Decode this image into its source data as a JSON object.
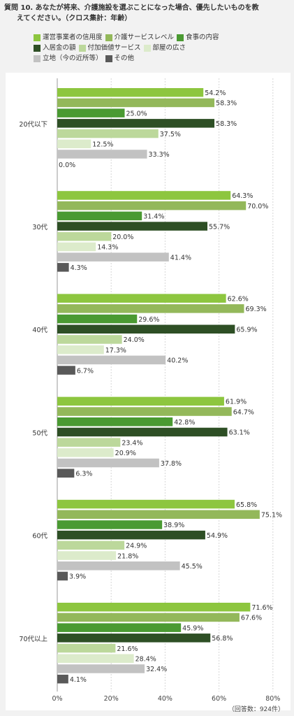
{
  "header": {
    "title_line1": "質問 10. あなたが将来、介護施設を選ぶことになった場合、優先したいものを教",
    "title_line2": "えてください。（クロス集計：年齢）"
  },
  "footnote": "（回答数：924件）",
  "chart_data": {
    "type": "bar",
    "orientation": "horizontal",
    "title": "質問 10. あなたが将来、介護施設を選ぶことになった場合、優先したいものを教えてください。（クロス集計：年齢）",
    "categories": [
      "20代以下",
      "30代",
      "40代",
      "50代",
      "60代",
      "70代以上"
    ],
    "xlim": [
      0,
      80
    ],
    "xticks": [
      "0%",
      "20%",
      "40%",
      "60%",
      "80%"
    ],
    "value_suffix": "%",
    "grid": true,
    "legend_position": "top",
    "series": [
      {
        "name": "運営事業者の信用度",
        "color": "#8dc63f",
        "values": [
          54.2,
          64.3,
          62.6,
          61.9,
          65.8,
          71.6
        ]
      },
      {
        "name": "介護サービスレベル",
        "color": "#93b85a",
        "values": [
          58.3,
          70.0,
          69.3,
          64.7,
          75.1,
          67.6
        ]
      },
      {
        "name": "食事の内容",
        "color": "#4a9a32",
        "values": [
          25.0,
          31.4,
          29.6,
          42.8,
          38.9,
          45.9
        ]
      },
      {
        "name": "入居金の額",
        "color": "#2e4f25",
        "values": [
          58.3,
          55.7,
          65.9,
          63.1,
          54.9,
          56.8
        ]
      },
      {
        "name": "付加価値サービス",
        "color": "#bcd89b",
        "values": [
          37.5,
          20.0,
          24.0,
          23.4,
          24.9,
          21.6
        ]
      },
      {
        "name": "部屋の広さ",
        "color": "#dcebcb",
        "values": [
          12.5,
          14.3,
          17.3,
          20.9,
          21.8,
          28.4
        ]
      },
      {
        "name": "立地（今の近所等）",
        "color": "#c2c2c2",
        "values": [
          33.3,
          41.4,
          40.2,
          37.8,
          45.5,
          32.4
        ]
      },
      {
        "name": "その他",
        "color": "#595959",
        "values": [
          0.0,
          4.3,
          6.7,
          6.3,
          3.9,
          4.1
        ]
      }
    ]
  }
}
